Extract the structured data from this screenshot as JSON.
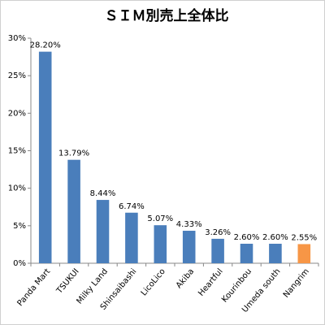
{
  "chart_data": {
    "type": "bar",
    "title": "ＳＩＭ別売上全体比",
    "categories": [
      "Panda Mart",
      "TSUKUI",
      "Milky Land",
      "Shinsaibashi",
      "LicoLico",
      "Akiba",
      "Heartful",
      "Kourinbou",
      "Umeda south",
      "Nangrim"
    ],
    "values": [
      28.2,
      13.79,
      8.44,
      6.74,
      5.07,
      4.33,
      3.26,
      2.6,
      2.6,
      2.55
    ],
    "value_labels": [
      "28.20%",
      "13.79%",
      "8.44%",
      "6.74%",
      "5.07%",
      "4.33%",
      "3.26%",
      "2.60%",
      "2.60%",
      "2.55%"
    ],
    "colors": [
      "#4a7ebb",
      "#4a7ebb",
      "#4a7ebb",
      "#4a7ebb",
      "#4a7ebb",
      "#4a7ebb",
      "#4a7ebb",
      "#4a7ebb",
      "#4a7ebb",
      "#f79646"
    ],
    "ylim": [
      0,
      30
    ],
    "yticks": [
      {
        "value": 0,
        "label": "0%"
      },
      {
        "value": 5,
        "label": "5%"
      },
      {
        "value": 10,
        "label": "10%"
      },
      {
        "value": 15,
        "label": "15%"
      },
      {
        "value": 20,
        "label": "20%"
      },
      {
        "value": 25,
        "label": "25%"
      },
      {
        "value": 30,
        "label": "30%"
      }
    ],
    "grid": false
  }
}
